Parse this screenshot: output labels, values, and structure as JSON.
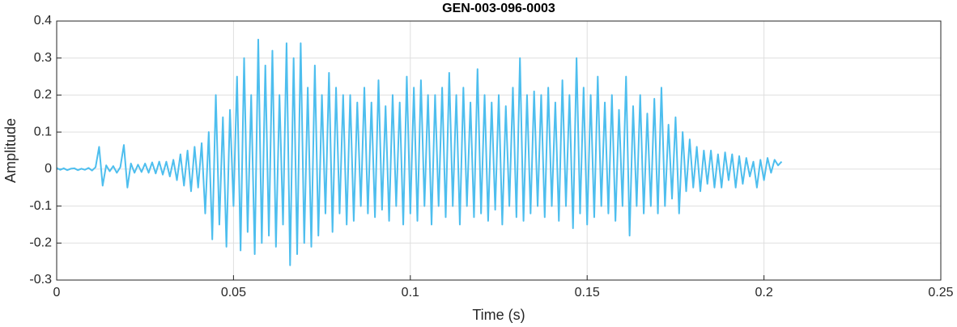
{
  "chart_data": {
    "type": "line",
    "title": "GEN-003-096-0003",
    "x_label": "Time (s)",
    "y_label": "Amplitude",
    "xlim": [
      0,
      0.25
    ],
    "ylim": [
      -0.3,
      0.4
    ],
    "xticks": [
      0,
      0.05,
      0.1,
      0.15,
      0.2,
      0.25
    ],
    "yticks": [
      -0.3,
      -0.2,
      -0.1,
      0,
      0.1,
      0.2,
      0.3,
      0.4
    ],
    "grid": true,
    "x": [
      0,
      0.001,
      0.002,
      0.003,
      0.004,
      0.005,
      0.006,
      0.007,
      0.008,
      0.009,
      0.01,
      0.011,
      0.012,
      0.013,
      0.014,
      0.015,
      0.016,
      0.017,
      0.018,
      0.019,
      0.02,
      0.021,
      0.022,
      0.023,
      0.024,
      0.025,
      0.026,
      0.027,
      0.028,
      0.029,
      0.03,
      0.031,
      0.032,
      0.033,
      0.034,
      0.035,
      0.036,
      0.037,
      0.038,
      0.039,
      0.04,
      0.041,
      0.042,
      0.043,
      0.044,
      0.045,
      0.046,
      0.047,
      0.048,
      0.049,
      0.05,
      0.051,
      0.052,
      0.053,
      0.054,
      0.055,
      0.056,
      0.057,
      0.058,
      0.059,
      0.06,
      0.061,
      0.062,
      0.063,
      0.064,
      0.065,
      0.066,
      0.067,
      0.068,
      0.069,
      0.07,
      0.071,
      0.072,
      0.073,
      0.074,
      0.075,
      0.076,
      0.077,
      0.078,
      0.079,
      0.08,
      0.081,
      0.082,
      0.083,
      0.084,
      0.085,
      0.086,
      0.087,
      0.088,
      0.089,
      0.09,
      0.091,
      0.092,
      0.093,
      0.094,
      0.095,
      0.096,
      0.097,
      0.098,
      0.099,
      0.1,
      0.101,
      0.102,
      0.103,
      0.104,
      0.105,
      0.106,
      0.107,
      0.108,
      0.109,
      0.11,
      0.111,
      0.112,
      0.113,
      0.114,
      0.115,
      0.116,
      0.117,
      0.118,
      0.119,
      0.12,
      0.121,
      0.122,
      0.123,
      0.124,
      0.125,
      0.126,
      0.127,
      0.128,
      0.129,
      0.13,
      0.131,
      0.132,
      0.133,
      0.134,
      0.135,
      0.136,
      0.137,
      0.138,
      0.139,
      0.14,
      0.141,
      0.142,
      0.143,
      0.144,
      0.145,
      0.146,
      0.147,
      0.148,
      0.149,
      0.15,
      0.151,
      0.152,
      0.153,
      0.154,
      0.155,
      0.156,
      0.157,
      0.158,
      0.159,
      0.16,
      0.161,
      0.162,
      0.163,
      0.164,
      0.165,
      0.166,
      0.167,
      0.168,
      0.169,
      0.17,
      0.171,
      0.172,
      0.173,
      0.174,
      0.175,
      0.176,
      0.177,
      0.178,
      0.179,
      0.18,
      0.181,
      0.182,
      0.183,
      0.184,
      0.185,
      0.186,
      0.187,
      0.188,
      0.189,
      0.19,
      0.191,
      0.192,
      0.193,
      0.194,
      0.195,
      0.196,
      0.197,
      0.198,
      0.199,
      0.2,
      0.201,
      0.202,
      0.203,
      0.204,
      0.205
    ],
    "series": [
      {
        "color": "#4dbeee",
        "values": [
          0.003,
          -0.002,
          0.002,
          -0.003,
          0.001,
          0.002,
          -0.003,
          0.001,
          -0.002,
          0.003,
          -0.004,
          0.005,
          0.06,
          -0.045,
          0.01,
          -0.006,
          0.008,
          -0.01,
          0.005,
          0.065,
          -0.05,
          0.015,
          -0.01,
          0.012,
          -0.008,
          0.015,
          -0.01,
          0.018,
          -0.012,
          0.02,
          -0.015,
          0.02,
          -0.02,
          0.025,
          -0.03,
          0.04,
          -0.045,
          0.05,
          -0.06,
          0.06,
          -0.05,
          0.07,
          -0.12,
          0.1,
          -0.19,
          0.2,
          -0.15,
          0.14,
          -0.21,
          0.16,
          -0.1,
          0.25,
          -0.22,
          0.3,
          -0.17,
          0.2,
          -0.23,
          0.35,
          -0.2,
          0.28,
          -0.18,
          0.32,
          -0.21,
          0.2,
          -0.15,
          0.34,
          -0.26,
          0.3,
          -0.23,
          0.34,
          -0.2,
          0.22,
          -0.21,
          0.28,
          -0.18,
          0.2,
          -0.12,
          0.26,
          -0.17,
          0.22,
          -0.12,
          0.2,
          -0.15,
          0.2,
          -0.14,
          0.18,
          -0.1,
          0.22,
          -0.12,
          0.18,
          -0.13,
          0.24,
          -0.11,
          0.17,
          -0.14,
          0.2,
          -0.1,
          0.18,
          -0.15,
          0.25,
          -0.12,
          0.22,
          -0.14,
          0.24,
          -0.1,
          0.2,
          -0.15,
          0.2,
          -0.1,
          0.22,
          -0.13,
          0.26,
          -0.1,
          0.2,
          -0.15,
          0.22,
          -0.1,
          0.18,
          -0.13,
          0.27,
          -0.12,
          0.2,
          -0.14,
          0.18,
          -0.11,
          0.2,
          -0.15,
          0.17,
          -0.1,
          0.22,
          -0.13,
          0.3,
          -0.14,
          0.2,
          -0.12,
          0.21,
          -0.1,
          0.2,
          -0.13,
          0.22,
          -0.1,
          0.18,
          -0.14,
          0.24,
          -0.1,
          0.2,
          -0.16,
          0.3,
          -0.12,
          0.22,
          -0.15,
          0.2,
          -0.13,
          0.25,
          -0.1,
          0.18,
          -0.12,
          0.2,
          -0.14,
          0.16,
          -0.1,
          0.25,
          -0.18,
          0.17,
          -0.1,
          0.2,
          -0.12,
          0.15,
          -0.1,
          0.19,
          -0.12,
          0.22,
          -0.1,
          0.12,
          -0.08,
          0.14,
          -0.12,
          0.1,
          -0.06,
          0.08,
          -0.05,
          0.06,
          -0.06,
          0.05,
          -0.04,
          0.05,
          -0.05,
          0.04,
          -0.05,
          0.045,
          -0.03,
          0.04,
          -0.05,
          0.035,
          -0.04,
          0.03,
          -0.02,
          0.02,
          -0.05,
          0.025,
          -0.03,
          0.03,
          -0.01,
          0.025,
          0.01,
          0.02
        ]
      }
    ]
  }
}
